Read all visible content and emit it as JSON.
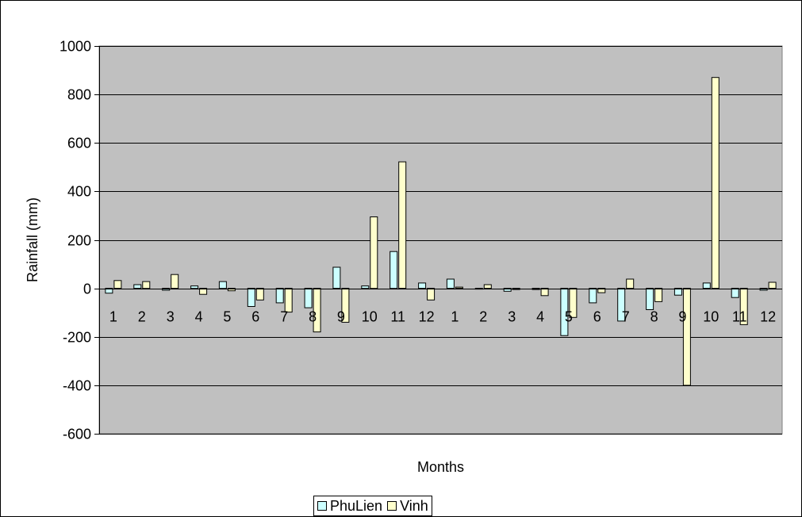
{
  "chart_data": {
    "type": "bar",
    "title": "",
    "xlabel": "Months",
    "ylabel": "Rainfall (mm)",
    "ylim": [
      -600,
      1000
    ],
    "yticks": [
      1000,
      800,
      600,
      400,
      200,
      0,
      -200,
      -400,
      -600
    ],
    "grid": true,
    "legend_position": "bottom",
    "categories": [
      "1",
      "2",
      "3",
      "4",
      "5",
      "6",
      "7",
      "8",
      "9",
      "10",
      "11",
      "12",
      "1",
      "2",
      "3",
      "4",
      "5",
      "6",
      "7",
      "8",
      "9",
      "10",
      "11",
      "12"
    ],
    "series": [
      {
        "name": "PhuLien",
        "color": "#ccffff",
        "values": [
          -20,
          15,
          -8,
          10,
          28,
          -75,
          -60,
          -80,
          87,
          10,
          152,
          22,
          38,
          0,
          -12,
          -5,
          -195,
          -60,
          -135,
          -88,
          -28,
          22,
          -38,
          -8
        ]
      },
      {
        "name": "Vinh",
        "color": "#ffffcc",
        "values": [
          32,
          28,
          57,
          -25,
          -10,
          -48,
          -98,
          -180,
          -140,
          295,
          522,
          -48,
          5,
          15,
          -5,
          -30,
          -120,
          -18,
          38,
          -55,
          -400,
          870,
          -150,
          25
        ]
      }
    ]
  },
  "style": {
    "plot_background": "#c0c0c0",
    "grid_color": "#000000",
    "bar_border": "#000000"
  }
}
